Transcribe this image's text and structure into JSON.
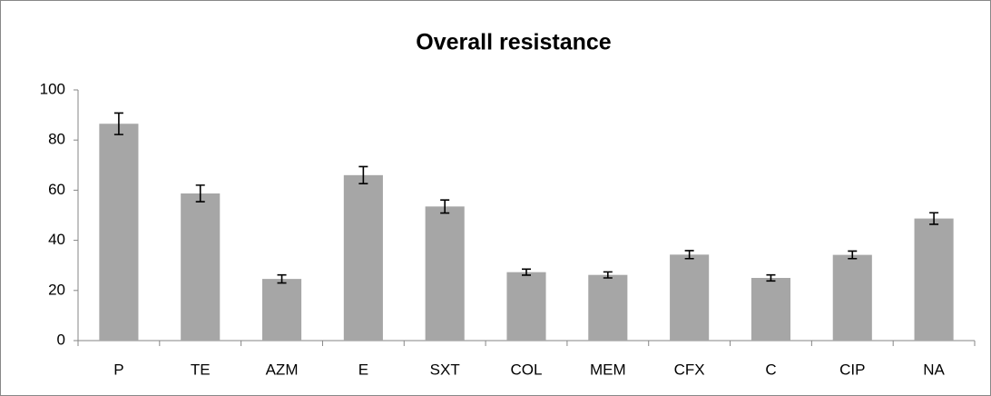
{
  "chart_data": {
    "type": "bar",
    "title": "Overall resistance",
    "categories": [
      "P",
      "TE",
      "AZM",
      "E",
      "SXT",
      "COL",
      "MEM",
      "CFX",
      "C",
      "CIP",
      "NA"
    ],
    "values": [
      86.5,
      58.7,
      24.6,
      66,
      53.5,
      27.3,
      26.2,
      34.3,
      25,
      34.2,
      48.7
    ],
    "errors": [
      4.3,
      3.3,
      1.6,
      3.4,
      2.6,
      1.2,
      1.2,
      1.6,
      1.2,
      1.5,
      2.3
    ],
    "color": "#a6a6a6",
    "ylim": [
      0,
      100
    ],
    "yticks": [
      0,
      20,
      40,
      60,
      80,
      100
    ],
    "grid": false
  }
}
